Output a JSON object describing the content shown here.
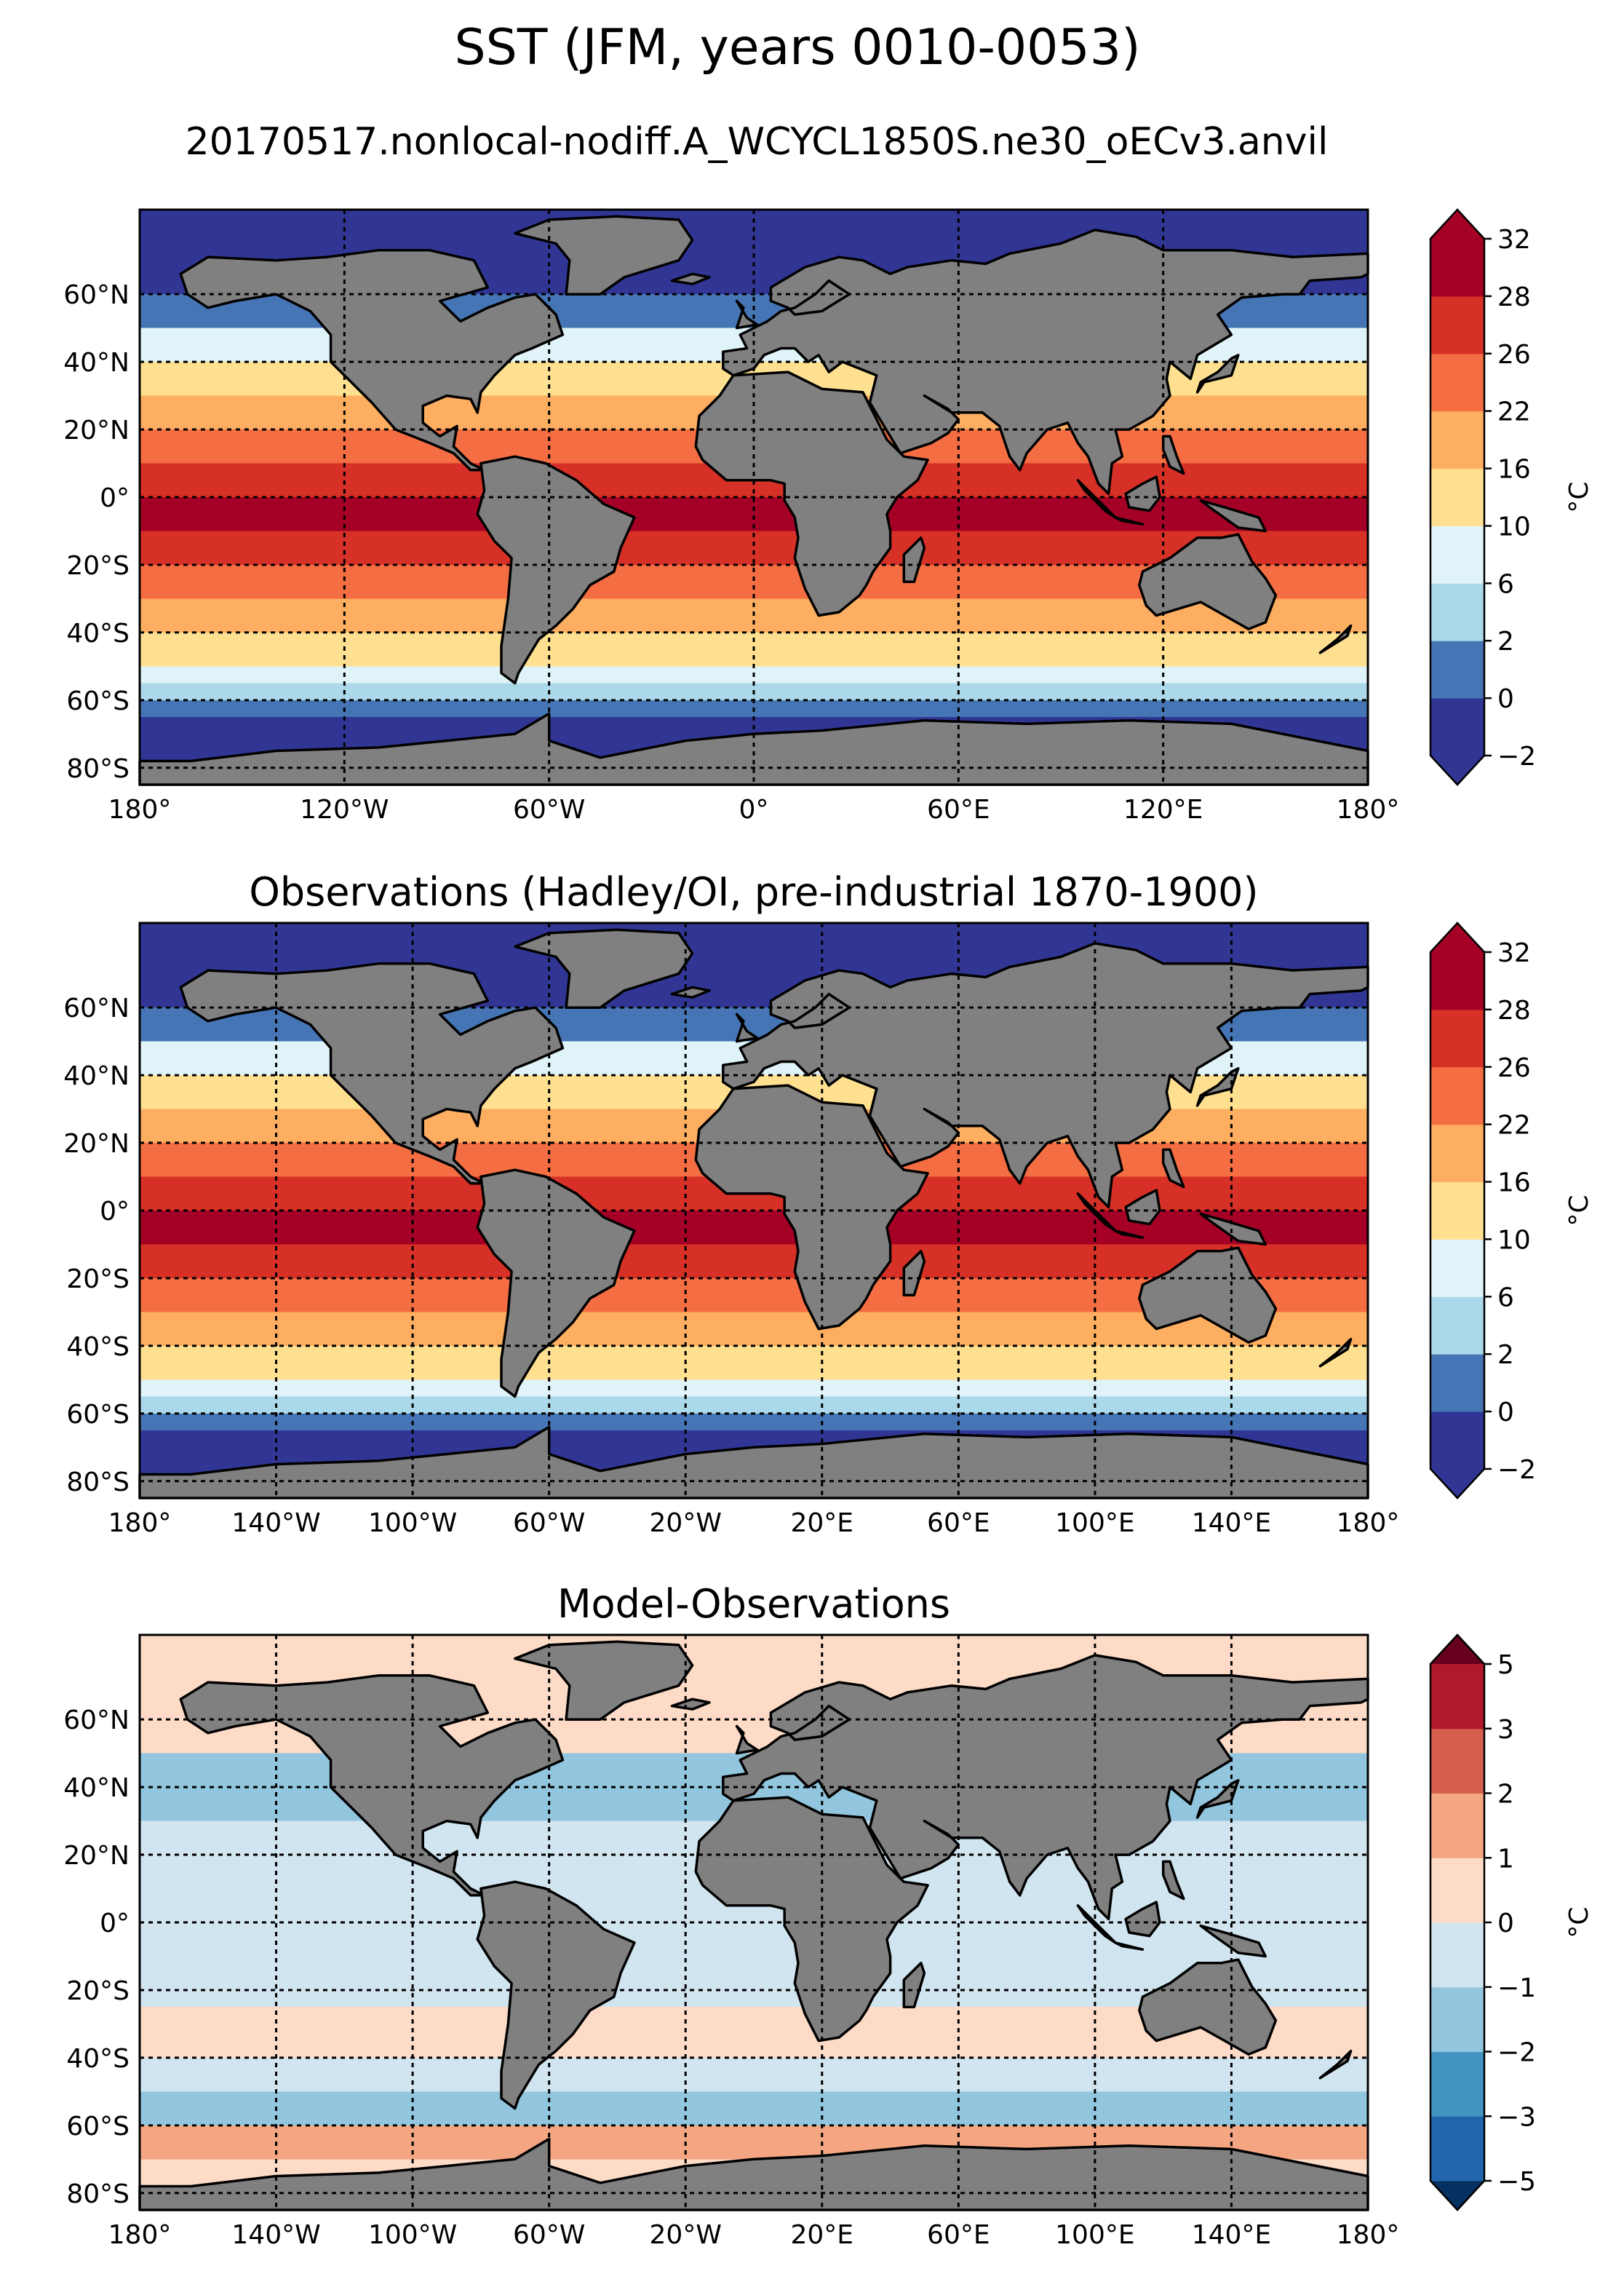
{
  "figure": {
    "title": "SST (JFM, years 0010-0053)",
    "subtitle": "20170517.nonlocal-nodiff.A_WCYCL1850S.ne30_oECv3.anvil",
    "colors": {
      "land": "#808080",
      "ocean_frame": "#000000",
      "sea_ice_gap": "#ffffff"
    }
  },
  "chart_data": [
    {
      "type": "heatmap",
      "panel": "model",
      "title": "",
      "lat_ticks": [
        "60°N",
        "40°N",
        "20°N",
        "0°",
        "20°S",
        "40°S",
        "60°S",
        "80°S"
      ],
      "lon_ticks": [
        "180°",
        "120°W",
        "60°W",
        "0°",
        "60°E",
        "120°E",
        "180°"
      ],
      "xlim": [
        -180,
        180
      ],
      "ylim": [
        -85,
        85
      ],
      "grid": true,
      "colorbar": {
        "label": "°C",
        "levels": [
          -2,
          0,
          2,
          6,
          10,
          16,
          22,
          26,
          28,
          32
        ],
        "tick_labels": [
          "−2",
          "0",
          "2",
          "6",
          "10",
          "16",
          "22",
          "26",
          "28",
          "32"
        ],
        "colors": [
          "#313695",
          "#4575b4",
          "#abd9e9",
          "#e0f3f8",
          "#fee090",
          "#fdae61",
          "#f46d43",
          "#d73027",
          "#a50026"
        ],
        "extend": "both"
      }
    },
    {
      "type": "heatmap",
      "panel": "observations",
      "title": "Observations (Hadley/OI, pre-industrial 1870-1900)",
      "lat_ticks": [
        "60°N",
        "40°N",
        "20°N",
        "0°",
        "20°S",
        "40°S",
        "60°S",
        "80°S"
      ],
      "lon_ticks": [
        "180°",
        "140°W",
        "100°W",
        "60°W",
        "20°W",
        "20°E",
        "60°E",
        "100°E",
        "140°E",
        "180°"
      ],
      "xlim": [
        -180,
        180
      ],
      "ylim": [
        -85,
        85
      ],
      "grid": true,
      "colorbar": {
        "label": "°C",
        "levels": [
          -2,
          0,
          2,
          6,
          10,
          16,
          22,
          26,
          28,
          32
        ],
        "tick_labels": [
          "−2",
          "0",
          "2",
          "6",
          "10",
          "16",
          "22",
          "26",
          "28",
          "32"
        ],
        "colors": [
          "#313695",
          "#4575b4",
          "#abd9e9",
          "#e0f3f8",
          "#fee090",
          "#fdae61",
          "#f46d43",
          "#d73027",
          "#a50026"
        ],
        "extend": "both"
      }
    },
    {
      "type": "heatmap",
      "panel": "bias",
      "title": "Model-Observations",
      "lat_ticks": [
        "60°N",
        "40°N",
        "20°N",
        "0°",
        "20°S",
        "40°S",
        "60°S",
        "80°S"
      ],
      "lon_ticks": [
        "180°",
        "140°W",
        "100°W",
        "60°W",
        "20°W",
        "20°E",
        "60°E",
        "100°E",
        "140°E",
        "180°"
      ],
      "xlim": [
        -180,
        180
      ],
      "ylim": [
        -85,
        85
      ],
      "grid": true,
      "colorbar": {
        "label": "°C",
        "levels": [
          -5,
          -3,
          -2,
          -1,
          0,
          1,
          2,
          3,
          5
        ],
        "tick_labels": [
          "−5",
          "−3",
          "−2",
          "−1",
          "0",
          "1",
          "2",
          "3",
          "5"
        ],
        "colors": [
          "#2166ac",
          "#4393c3",
          "#92c5de",
          "#d1e5f0",
          "#fddbc7",
          "#f4a582",
          "#d6604d",
          "#b2182b"
        ],
        "over_color": "#67001f",
        "under_color": "#053061",
        "extend": "both"
      }
    }
  ]
}
